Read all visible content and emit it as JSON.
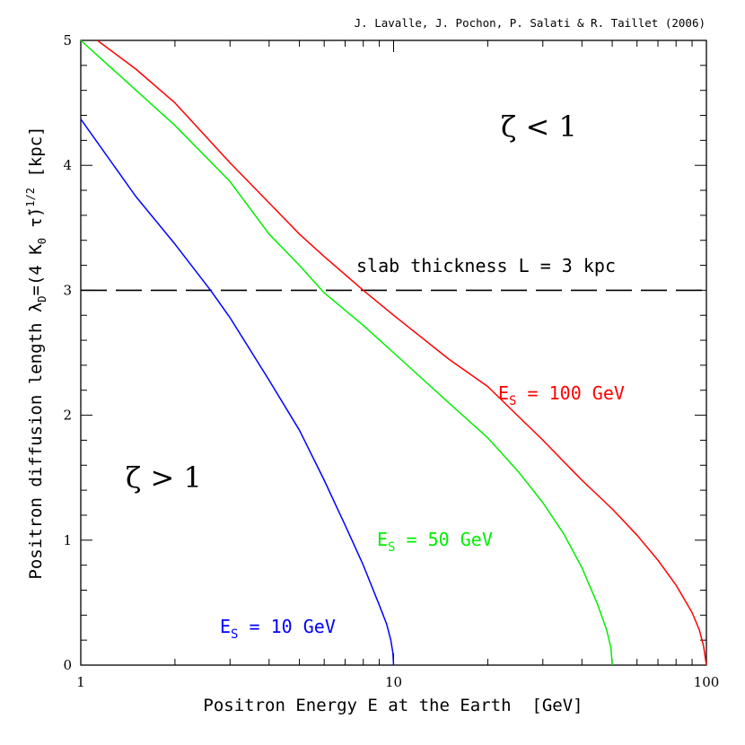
{
  "credit": "J. Lavalle, J. Pochon, P. Salati & R. Taillet (2006)",
  "chart_data": {
    "type": "line",
    "title": "",
    "xlabel": "Positron Energy E at the Earth  [GeV]",
    "ylabel": "Positron diffusion length λ_D=(4 K_0 τ̃)^1/2 [kpc]",
    "xscale": "log",
    "xlim": [
      1,
      100
    ],
    "ylim": [
      0,
      5
    ],
    "x_ticks": [
      {
        "value": 1,
        "label": "1"
      },
      {
        "value": 10,
        "label": "10"
      },
      {
        "value": 100,
        "label": "100"
      }
    ],
    "y_ticks": [
      {
        "value": 0,
        "label": "0"
      },
      {
        "value": 1,
        "label": "1"
      },
      {
        "value": 2,
        "label": "2"
      },
      {
        "value": 3,
        "label": "3"
      },
      {
        "value": 4,
        "label": "4"
      },
      {
        "value": 5,
        "label": "5"
      }
    ],
    "series": [
      {
        "name": "E_S = 10 GeV",
        "color": "#0000ff",
        "x": [
          1.0,
          1.5,
          2.0,
          2.6,
          3.0,
          4.0,
          5.0,
          6.0,
          7.0,
          8.0,
          9.0,
          9.5,
          9.8,
          9.95,
          10.0
        ],
        "y": [
          4.37,
          3.75,
          3.37,
          3.0,
          2.78,
          2.28,
          1.88,
          1.48,
          1.12,
          0.8,
          0.48,
          0.33,
          0.2,
          0.1,
          0.0
        ]
      },
      {
        "name": "E_S = 50 GeV",
        "color": "#00ee00",
        "x": [
          1.0,
          2.0,
          3.0,
          4.0,
          5.0,
          6.0,
          8.0,
          10.0,
          15.0,
          20.0,
          25.0,
          30.0,
          35.0,
          40.0,
          45.0,
          48.0,
          49.5,
          50.0
        ],
        "y": [
          5.0,
          4.32,
          3.87,
          3.45,
          3.2,
          2.98,
          2.72,
          2.5,
          2.1,
          1.82,
          1.55,
          1.3,
          1.05,
          0.78,
          0.48,
          0.28,
          0.14,
          0.0
        ]
      },
      {
        "name": "E_S = 100 GeV",
        "color": "#ff0000",
        "x": [
          1.13,
          1.5,
          2.0,
          3.0,
          4.0,
          5.0,
          6.0,
          8.0,
          10.0,
          15.0,
          20.0,
          30.0,
          40.0,
          50.0,
          60.0,
          70.0,
          80.0,
          90.0,
          95.0,
          98.0,
          100.0
        ],
        "y": [
          5.0,
          4.77,
          4.5,
          4.02,
          3.7,
          3.45,
          3.27,
          3.0,
          2.8,
          2.45,
          2.23,
          1.8,
          1.48,
          1.25,
          1.04,
          0.84,
          0.64,
          0.42,
          0.28,
          0.15,
          0.0
        ]
      }
    ],
    "reference_line": {
      "y": 3,
      "style": "dashed",
      "color": "#000000",
      "label": "slab thickness L = 3 kpc"
    },
    "annotations": [
      {
        "text": "E_S = 100 GeV",
        "color": "#ff0000"
      },
      {
        "text": "E_S = 50 GeV",
        "color": "#00ee00"
      },
      {
        "text": "E_S = 10 GeV",
        "color": "#0000ff"
      }
    ],
    "regions": [
      {
        "text": "ζ < 1"
      },
      {
        "text": "ζ > 1"
      }
    ],
    "grid": false,
    "legend": "none"
  }
}
